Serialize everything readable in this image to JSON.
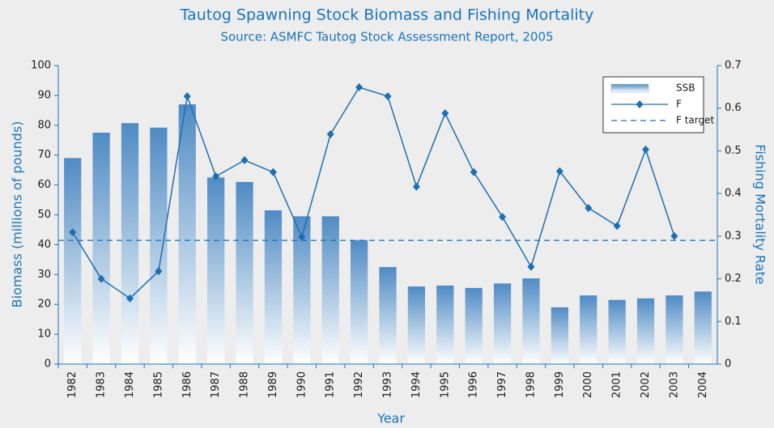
{
  "chart_data": {
    "type": "bar",
    "title": "Tautog Spawning Stock Biomass and Fishing Mortality",
    "subtitle": "Source: ASMFC Tautog Stock Assessment Report, 2005",
    "x_label": "Year",
    "y_label": "Biomass (millions of pounds)",
    "y2_label": "Fishing Mortality Rate",
    "categories": [
      "1982",
      "1983",
      "1984",
      "1985",
      "1986",
      "1987",
      "1988",
      "1989",
      "1990",
      "1991",
      "1992",
      "1993",
      "1994",
      "1995",
      "1996",
      "1997",
      "1998",
      "1999",
      "2000",
      "2001",
      "2002",
      "2003",
      "2004"
    ],
    "series": [
      {
        "name": "SSB",
        "type": "bar",
        "color": "#4f8bc4",
        "values": [
          69,
          77.5,
          80.7,
          79.2,
          87,
          62.5,
          61,
          51.5,
          49.5,
          49.5,
          41.5,
          32.5,
          26,
          26.3,
          25.5,
          27,
          28.7,
          19,
          23,
          21.5,
          22,
          23,
          24.3
        ]
      },
      {
        "name": "F",
        "type": "line",
        "axis": "y2",
        "color": "#1f6fb0",
        "values": [
          0.309,
          0.2,
          0.154,
          0.218,
          0.628,
          0.44,
          0.478,
          0.45,
          0.298,
          0.539,
          0.649,
          0.628,
          0.416,
          0.588,
          0.45,
          0.345,
          0.228,
          0.452,
          0.366,
          0.324,
          0.503,
          0.3,
          null
        ]
      }
    ],
    "hlines": [
      {
        "name": "F target",
        "value": 0.29,
        "axis": "y2",
        "color": "#1f6fb0",
        "dashed": true
      }
    ],
    "ylim": [
      0,
      100
    ],
    "yticks": [
      0,
      10,
      20,
      30,
      40,
      50,
      60,
      70,
      80,
      90,
      100
    ],
    "y2lim": [
      0,
      0.7
    ],
    "y2ticks": [
      0,
      0.1,
      0.2,
      0.3,
      0.4,
      0.5,
      0.6,
      0.7
    ],
    "legend": "top-right"
  }
}
